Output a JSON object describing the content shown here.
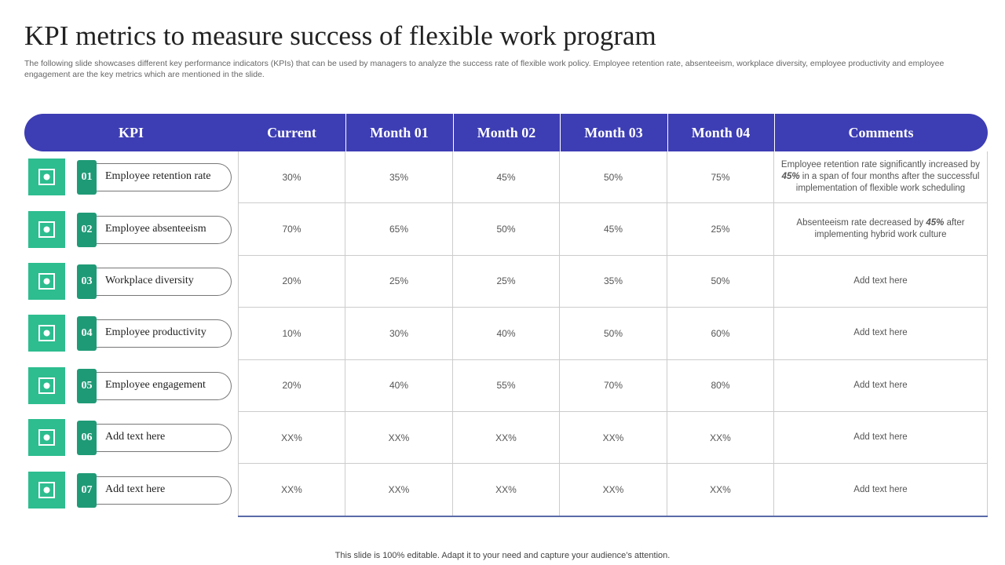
{
  "header": {
    "title": "KPI metrics to measure success of flexible work program",
    "subtitle": "The following slide showcases different key performance indicators (KPIs) that can be used by managers to analyze the success rate of flexible work policy. Employee retention rate, absenteeism, workplace diversity, employee productivity and employee engagement are the key metrics which are mentioned in the slide."
  },
  "table": {
    "columns": [
      "KPI",
      "Current",
      "Month 01",
      "Month 02",
      "Month 03",
      "Month 04",
      "Comments"
    ],
    "rows": [
      {
        "number": "01",
        "kpi": "Employee retention rate",
        "values": [
          "30%",
          "35%",
          "45%",
          "50%",
          "75%"
        ],
        "comment": [
          "Employee retention rate significantly increased by ",
          "45%",
          " in a span of four months after the successful implementation of flexible work scheduling"
        ]
      },
      {
        "number": "02",
        "kpi": "Employee absenteeism",
        "values": [
          "70%",
          "65%",
          "50%",
          "45%",
          "25%"
        ],
        "comment": [
          "Absenteeism rate decreased by ",
          "45%",
          " after implementing hybrid work culture"
        ]
      },
      {
        "number": "03",
        "kpi": "Workplace diversity",
        "values": [
          "20%",
          "25%",
          "25%",
          "35%",
          "50%"
        ],
        "comment": [
          "Add text here"
        ]
      },
      {
        "number": "04",
        "kpi": "Employee productivity",
        "values": [
          "10%",
          "30%",
          "40%",
          "50%",
          "60%"
        ],
        "comment": [
          "Add text here"
        ]
      },
      {
        "number": "05",
        "kpi": "Employee engagement",
        "values": [
          "20%",
          "40%",
          "55%",
          "70%",
          "80%"
        ],
        "comment": [
          "Add text here"
        ]
      },
      {
        "number": "06",
        "kpi": "Add text here",
        "values": [
          "XX%",
          "XX%",
          "XX%",
          "XX%",
          "XX%"
        ],
        "comment": [
          "Add text here"
        ]
      },
      {
        "number": "07",
        "kpi": "Add text here",
        "values": [
          "XX%",
          "XX%",
          "XX%",
          "XX%",
          "XX%"
        ],
        "comment": [
          "Add text here"
        ]
      }
    ]
  },
  "footer": "This slide is 100% editable. Adapt it to your need and capture your audience’s attention."
}
